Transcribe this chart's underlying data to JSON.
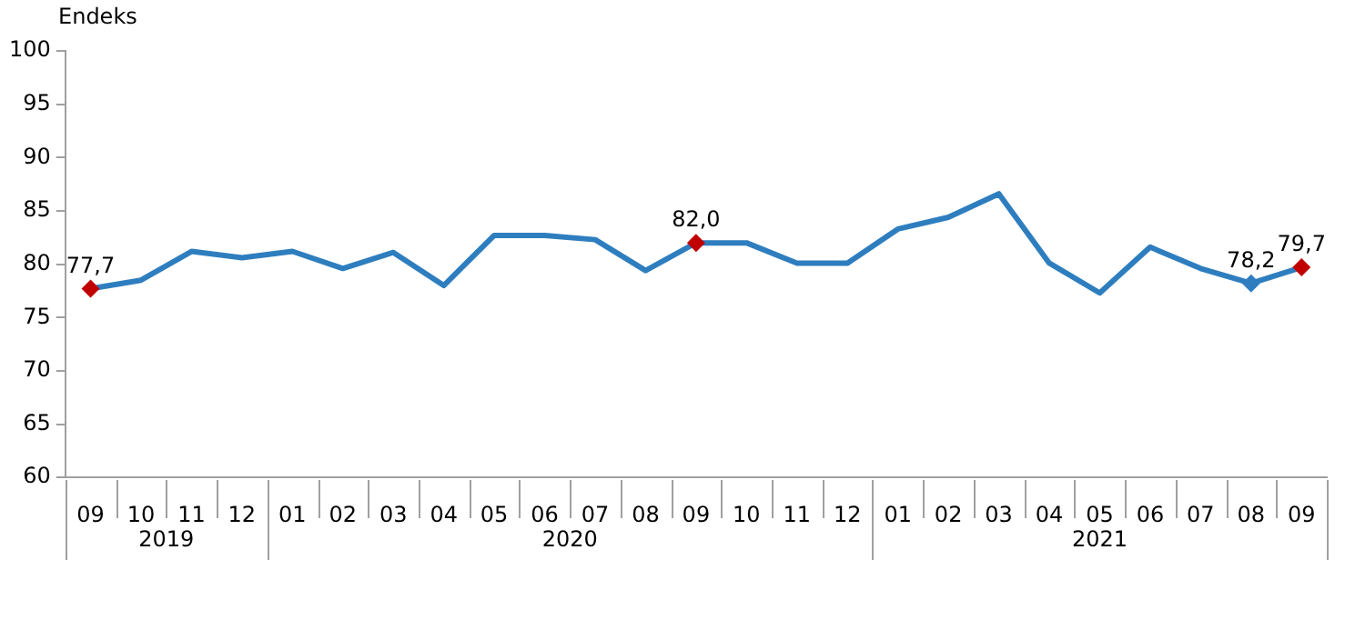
{
  "chart_data": {
    "type": "line",
    "ylabel": "Endeks",
    "categories": [
      "09",
      "10",
      "11",
      "12",
      "01",
      "02",
      "03",
      "04",
      "05",
      "06",
      "07",
      "08",
      "09",
      "10",
      "11",
      "12",
      "01",
      "02",
      "03",
      "04",
      "05",
      "06",
      "07",
      "08",
      "09"
    ],
    "series": [
      {
        "color": "#2e7ebf",
        "values": [
          77.7,
          78.5,
          81.2,
          80.6,
          81.2,
          79.6,
          81.1,
          78.0,
          82.7,
          82.7,
          82.3,
          79.4,
          82.0,
          82.0,
          80.1,
          80.1,
          83.3,
          84.4,
          86.6,
          80.1,
          77.3,
          81.6,
          79.6,
          78.2,
          79.7
        ],
        "colors": [
          "#c00000",
          "#2e7ebf",
          "#2e7ebf",
          "#2e7ebf",
          "#2e7ebf",
          "#2e7ebf",
          "#2e7ebf",
          "#2e7ebf",
          "#2e7ebf",
          "#2e7ebf",
          "#2e7ebf",
          "#2e7ebf",
          "#c00000",
          "#2e7ebf",
          "#2e7ebf",
          "#2e7ebf",
          "#2e7ebf",
          "#2e7ebf",
          "#2e7ebf",
          "#2e7ebf",
          "#2e7ebf",
          "#2e7ebf",
          "#2e7ebf",
          "#2e7ebf",
          "#c00000"
        ],
        "value_labels": [
          "77,7",
          null,
          null,
          null,
          null,
          null,
          null,
          null,
          null,
          null,
          null,
          null,
          "82,0",
          null,
          null,
          null,
          null,
          null,
          null,
          null,
          null,
          null,
          null,
          "78,2",
          "79,7"
        ]
      }
    ],
    "ylim": [
      60,
      100
    ],
    "yticks": [
      60,
      65,
      70,
      75,
      80,
      85,
      90,
      95,
      100
    ],
    "grid": false,
    "legend": false,
    "line_style": "solid",
    "annotations": [
      "2019",
      "2020",
      "2021"
    ]
  }
}
